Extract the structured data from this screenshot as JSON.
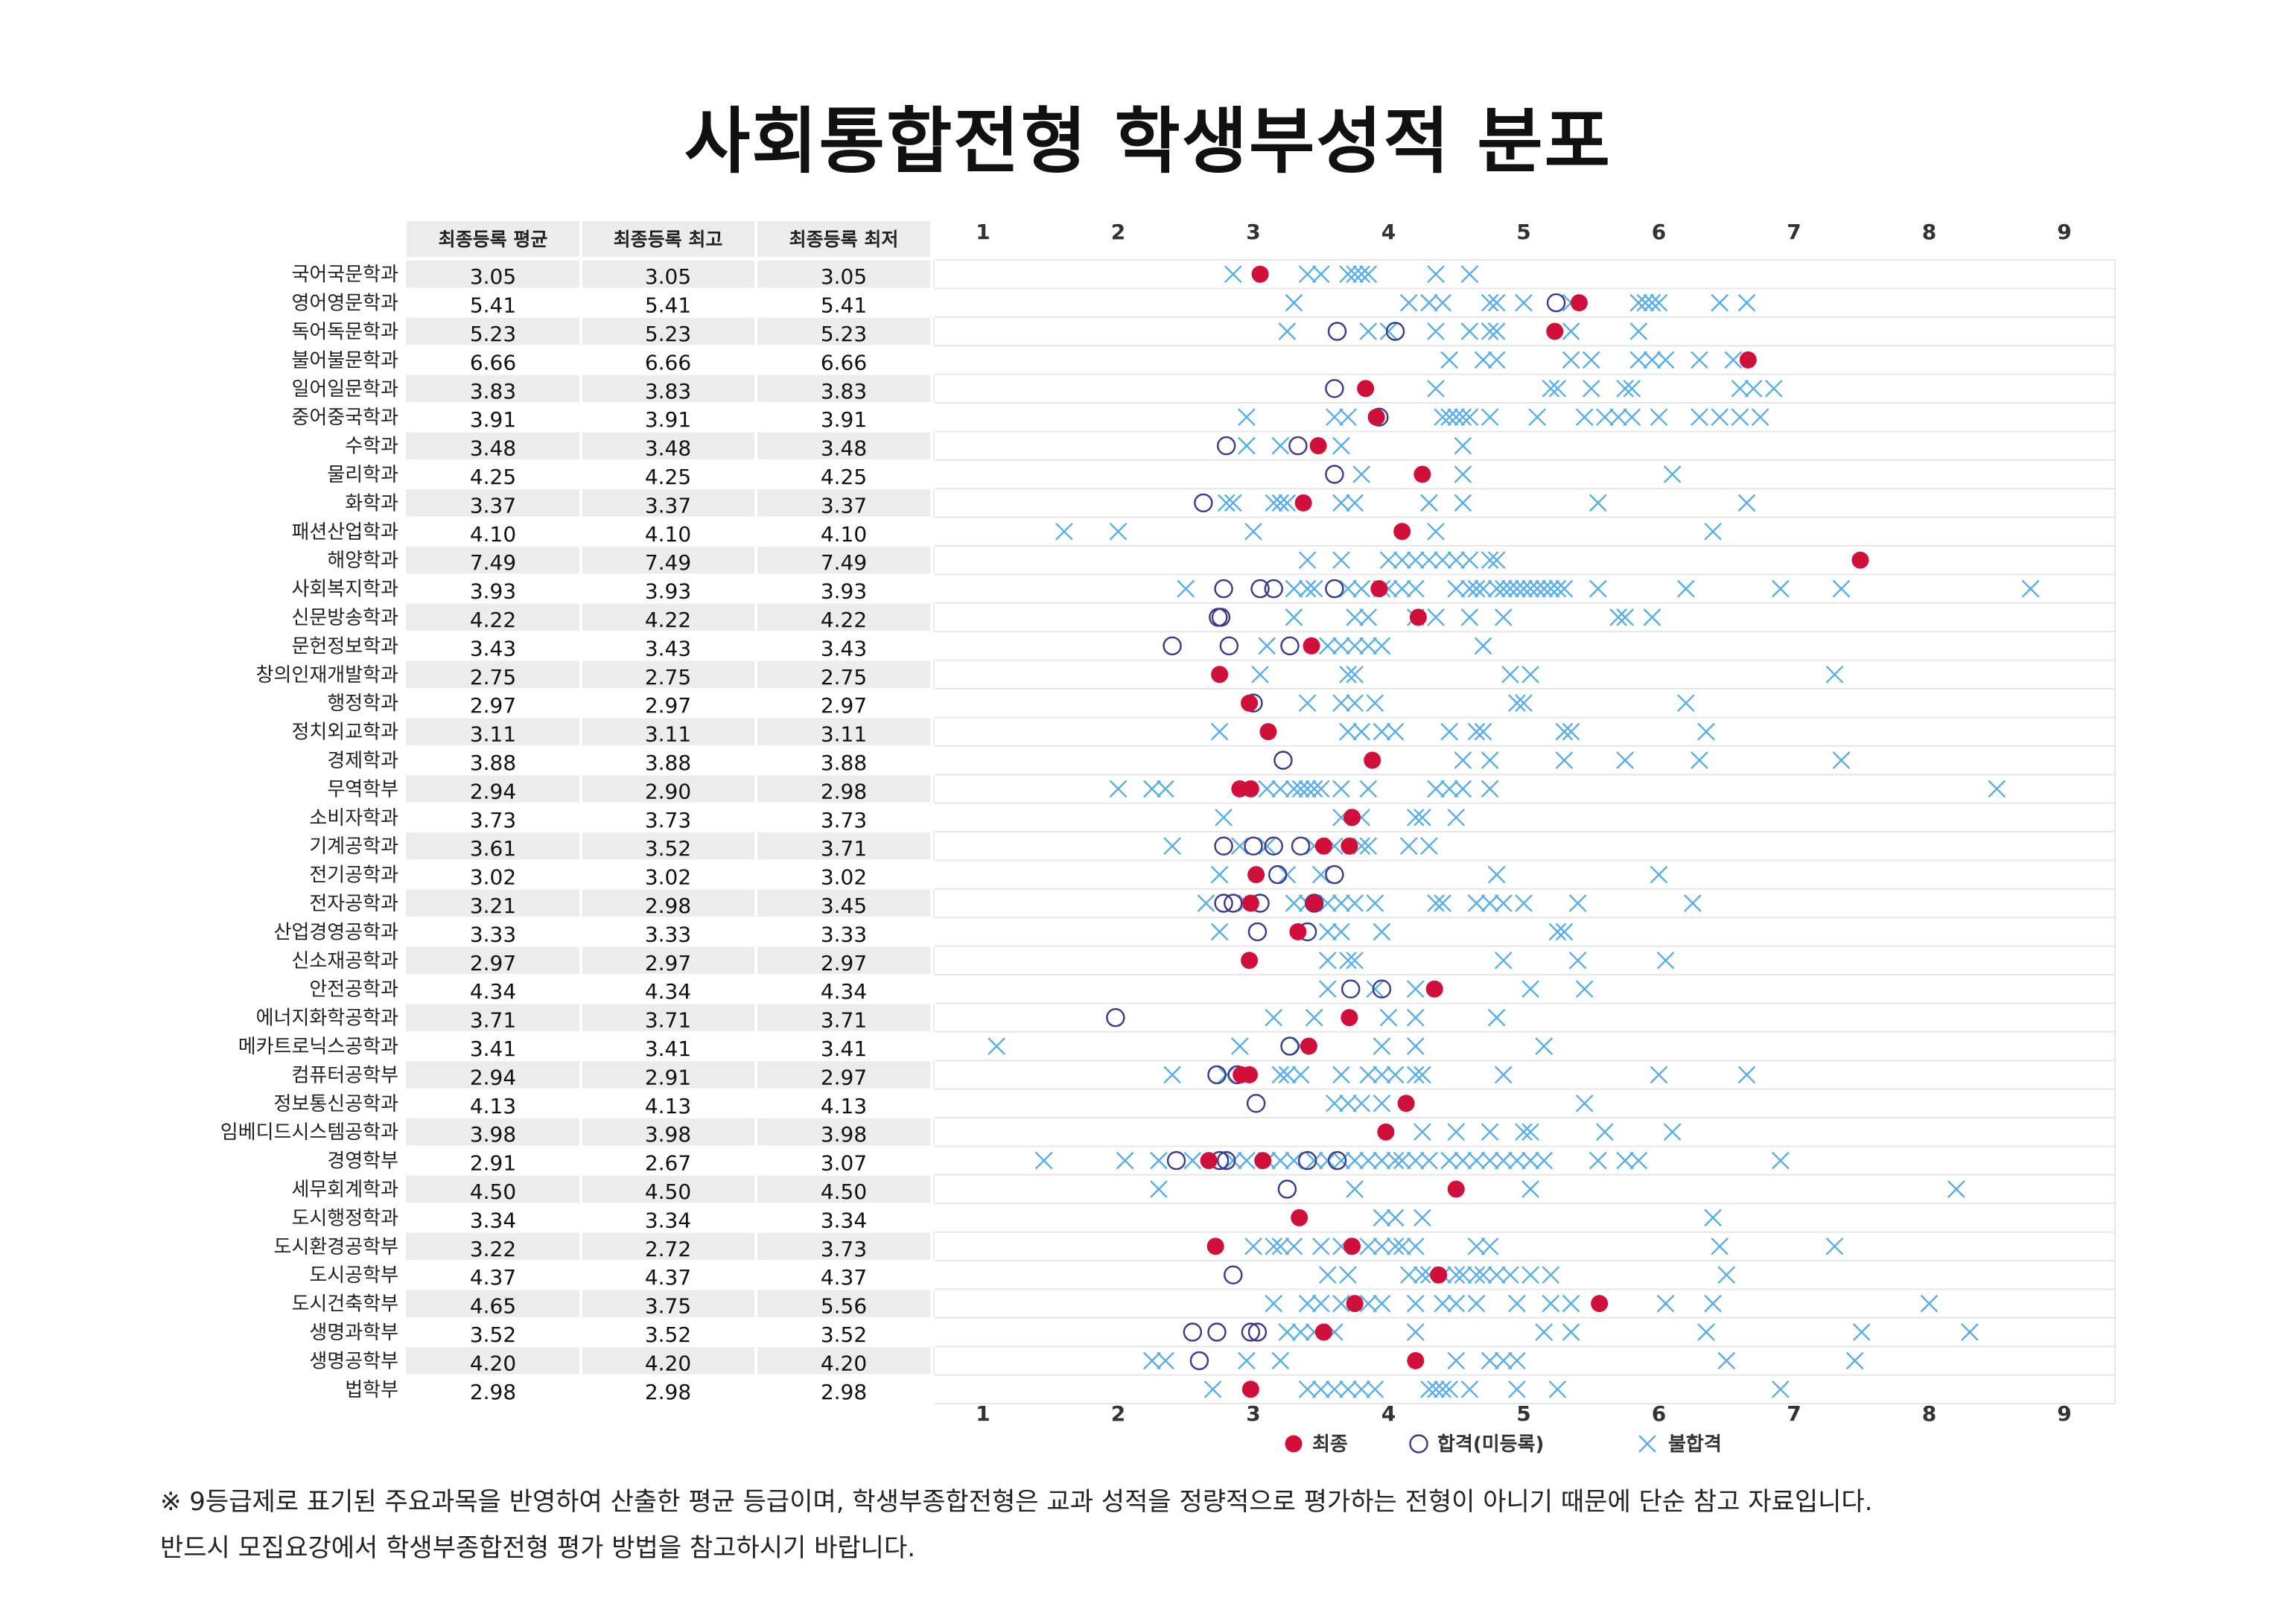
{
  "title": "사회통합전형 학생부성적 분포",
  "chart_data": {
    "type": "scatter",
    "title": "사회통합전형 학생부성적 분포",
    "columns": [
      "최종등록 평균",
      "최종등록 최고",
      "최종등록 최저"
    ],
    "x_ticks": [
      1,
      2,
      3,
      4,
      5,
      6,
      7,
      8,
      9
    ],
    "xlim": [
      1,
      9
    ],
    "legend": {
      "position": "bottom",
      "items": [
        {
          "key": "final",
          "label": "최종",
          "marker": "filled-circle",
          "color": "#d0103a"
        },
        {
          "key": "pass",
          "label": "합격(미등록)",
          "marker": "open-circle",
          "color": "#3b3a8c"
        },
        {
          "key": "fail",
          "label": "불합격",
          "marker": "x",
          "color": "#5aaee6"
        }
      ]
    },
    "rows": [
      {
        "dept": "국어국문학과",
        "avg": "3.05",
        "max": "3.05",
        "min": "3.05",
        "final": [
          3.05
        ],
        "pass": [],
        "fail": [
          2.85,
          3.4,
          3.5,
          3.7,
          3.75,
          3.8,
          3.85,
          4.35,
          4.6
        ]
      },
      {
        "dept": "영어영문학과",
        "avg": "5.41",
        "max": "5.41",
        "min": "5.41",
        "final": [
          5.41
        ],
        "pass": [
          5.24
        ],
        "fail": [
          3.3,
          4.15,
          4.3,
          4.4,
          4.75,
          4.8,
          5.0,
          5.35,
          5.85,
          5.9,
          5.95,
          6.0,
          6.45,
          6.65
        ]
      },
      {
        "dept": "독어독문학과",
        "avg": "5.23",
        "max": "5.23",
        "min": "5.23",
        "final": [
          5.23
        ],
        "pass": [
          3.62,
          4.05
        ],
        "fail": [
          3.25,
          3.85,
          4.0,
          4.35,
          4.6,
          4.75,
          4.8,
          5.35,
          5.85
        ]
      },
      {
        "dept": "불어불문학과",
        "avg": "6.66",
        "max": "6.66",
        "min": "6.66",
        "final": [
          6.66
        ],
        "pass": [],
        "fail": [
          4.45,
          4.7,
          4.8,
          5.35,
          5.5,
          5.85,
          5.95,
          6.05,
          6.3,
          6.55
        ]
      },
      {
        "dept": "일어일문학과",
        "avg": "3.83",
        "max": "3.83",
        "min": "3.83",
        "final": [
          3.83
        ],
        "pass": [
          3.6
        ],
        "fail": [
          4.35,
          5.2,
          5.25,
          5.5,
          5.75,
          5.8,
          6.6,
          6.7,
          6.85
        ]
      },
      {
        "dept": "중어중국학과",
        "avg": "3.91",
        "max": "3.91",
        "min": "3.91",
        "final": [
          3.91
        ],
        "pass": [
          3.93
        ],
        "fail": [
          2.95,
          3.6,
          3.7,
          4.4,
          4.45,
          4.5,
          4.55,
          4.6,
          4.75,
          5.1,
          5.45,
          5.6,
          5.7,
          5.8,
          6.0,
          6.3,
          6.45,
          6.6,
          6.75
        ]
      },
      {
        "dept": "수학과",
        "avg": "3.48",
        "max": "3.48",
        "min": "3.48",
        "final": [
          3.48
        ],
        "pass": [
          2.8,
          3.33
        ],
        "fail": [
          2.95,
          3.2,
          3.65,
          4.55
        ]
      },
      {
        "dept": "물리학과",
        "avg": "4.25",
        "max": "4.25",
        "min": "4.25",
        "final": [
          4.25
        ],
        "pass": [
          3.6
        ],
        "fail": [
          3.8,
          4.55,
          6.1
        ]
      },
      {
        "dept": "화학과",
        "avg": "3.37",
        "max": "3.37",
        "min": "3.37",
        "final": [
          3.37
        ],
        "pass": [
          2.63
        ],
        "fail": [
          2.8,
          2.85,
          3.15,
          3.2,
          3.25,
          3.65,
          3.75,
          4.3,
          4.55,
          5.55,
          6.65
        ]
      },
      {
        "dept": "패션산업학과",
        "avg": "4.10",
        "max": "4.10",
        "min": "4.10",
        "final": [
          4.1
        ],
        "pass": [],
        "fail": [
          1.6,
          2.0,
          3.0,
          4.35,
          6.4
        ]
      },
      {
        "dept": "해양학과",
        "avg": "7.49",
        "max": "7.49",
        "min": "7.49",
        "final": [
          7.49
        ],
        "pass": [],
        "fail": [
          3.4,
          3.65,
          4.0,
          4.1,
          4.2,
          4.3,
          4.4,
          4.5,
          4.6,
          4.75,
          4.8
        ]
      },
      {
        "dept": "사회복지학과",
        "avg": "3.93",
        "max": "3.93",
        "min": "3.93",
        "final": [
          3.93
        ],
        "pass": [
          2.78,
          3.05,
          3.15,
          3.6
        ],
        "fail": [
          2.5,
          3.3,
          3.4,
          3.45,
          3.7,
          3.8,
          3.95,
          4.0,
          4.1,
          4.2,
          4.5,
          4.6,
          4.65,
          4.7,
          4.8,
          4.85,
          4.9,
          4.95,
          5.0,
          5.05,
          5.1,
          5.15,
          5.2,
          5.25,
          5.3,
          5.55,
          6.2,
          6.9,
          7.35,
          8.75
        ]
      },
      {
        "dept": "신문방송학과",
        "avg": "4.22",
        "max": "4.22",
        "min": "4.22",
        "final": [
          4.22
        ],
        "pass": [
          2.74,
          2.76
        ],
        "fail": [
          3.3,
          3.75,
          3.85,
          4.2,
          4.35,
          4.6,
          4.85,
          5.7,
          5.75,
          5.95
        ]
      },
      {
        "dept": "문헌정보학과",
        "avg": "3.43",
        "max": "3.43",
        "min": "3.43",
        "final": [
          3.43
        ],
        "pass": [
          2.4,
          2.82,
          3.27
        ],
        "fail": [
          3.1,
          3.55,
          3.65,
          3.75,
          3.85,
          3.95,
          4.7
        ]
      },
      {
        "dept": "창의인재개발학과",
        "avg": "2.75",
        "max": "2.75",
        "min": "2.75",
        "final": [
          2.75
        ],
        "pass": [],
        "fail": [
          3.05,
          3.7,
          3.75,
          4.9,
          5.05,
          7.3
        ]
      },
      {
        "dept": "행정학과",
        "avg": "2.97",
        "max": "2.97",
        "min": "2.97",
        "final": [
          2.97
        ],
        "pass": [
          3.0
        ],
        "fail": [
          3.4,
          3.65,
          3.75,
          3.9,
          4.95,
          5.0,
          6.2
        ]
      },
      {
        "dept": "정치외교학과",
        "avg": "3.11",
        "max": "3.11",
        "min": "3.11",
        "final": [
          3.11
        ],
        "pass": [],
        "fail": [
          2.75,
          3.7,
          3.8,
          3.95,
          4.05,
          4.45,
          4.65,
          4.7,
          5.3,
          5.35,
          6.35
        ]
      },
      {
        "dept": "경제학과",
        "avg": "3.88",
        "max": "3.88",
        "min": "3.88",
        "final": [
          3.88
        ],
        "pass": [
          3.22
        ],
        "fail": [
          4.55,
          4.75,
          5.3,
          5.75,
          6.3,
          7.35
        ]
      },
      {
        "dept": "무역학부",
        "avg": "2.94",
        "max": "2.90",
        "min": "2.98",
        "final": [
          2.9,
          2.98
        ],
        "pass": [],
        "fail": [
          2.0,
          2.25,
          2.35,
          3.1,
          3.2,
          3.3,
          3.35,
          3.4,
          3.45,
          3.5,
          3.65,
          3.85,
          4.35,
          4.45,
          4.55,
          4.75,
          8.5
        ]
      },
      {
        "dept": "소비자학과",
        "avg": "3.73",
        "max": "3.73",
        "min": "3.73",
        "final": [
          3.73
        ],
        "pass": [],
        "fail": [
          2.78,
          3.65,
          3.8,
          4.2,
          4.25,
          4.5
        ]
      },
      {
        "dept": "기계공학과",
        "avg": "3.61",
        "max": "3.52",
        "min": "3.71",
        "final": [
          3.52,
          3.71
        ],
        "pass": [
          2.78,
          3.0,
          3.15,
          3.35
        ],
        "fail": [
          2.4,
          2.9,
          3.1,
          3.45,
          3.6,
          3.8,
          3.85,
          4.15,
          4.3
        ]
      },
      {
        "dept": "전기공학과",
        "avg": "3.02",
        "max": "3.02",
        "min": "3.02",
        "final": [
          3.02
        ],
        "pass": [
          3.18,
          3.6
        ],
        "fail": [
          2.75,
          3.25,
          3.5,
          4.8,
          6.0
        ]
      },
      {
        "dept": "전자공학과",
        "avg": "3.21",
        "max": "2.98",
        "min": "3.45",
        "final": [
          2.98,
          3.45
        ],
        "pass": [
          2.78,
          2.85,
          3.05,
          3.45
        ],
        "fail": [
          2.65,
          2.95,
          3.3,
          3.4,
          3.55,
          3.65,
          3.75,
          3.9,
          4.35,
          4.4,
          4.65,
          4.75,
          4.85,
          5.0,
          5.4,
          6.25
        ]
      },
      {
        "dept": "산업경영공학과",
        "avg": "3.33",
        "max": "3.33",
        "min": "3.33",
        "final": [
          3.33
        ],
        "pass": [
          3.03,
          3.4
        ],
        "fail": [
          2.75,
          3.55,
          3.65,
          3.95,
          5.25,
          5.3
        ]
      },
      {
        "dept": "신소재공학과",
        "avg": "2.97",
        "max": "2.97",
        "min": "2.97",
        "final": [
          2.97
        ],
        "pass": [],
        "fail": [
          3.55,
          3.7,
          3.75,
          4.85,
          5.4,
          6.05
        ]
      },
      {
        "dept": "안전공학과",
        "avg": "4.34",
        "max": "4.34",
        "min": "4.34",
        "final": [
          4.34
        ],
        "pass": [
          3.72,
          3.95
        ],
        "fail": [
          3.55,
          3.9,
          4.2,
          5.05,
          5.45
        ]
      },
      {
        "dept": "에너지화학공학과",
        "avg": "3.71",
        "max": "3.71",
        "min": "3.71",
        "final": [
          3.71
        ],
        "pass": [
          1.98
        ],
        "fail": [
          3.15,
          3.45,
          4.0,
          4.2,
          4.8
        ]
      },
      {
        "dept": "메카트로닉스공학과",
        "avg": "3.41",
        "max": "3.41",
        "min": "3.41",
        "final": [
          3.41
        ],
        "pass": [
          3.27
        ],
        "fail": [
          1.1,
          2.9,
          3.35,
          3.95,
          4.2,
          5.15
        ]
      },
      {
        "dept": "컴퓨터공학부",
        "avg": "2.94",
        "max": "2.91",
        "min": "2.97",
        "final": [
          2.91,
          2.97
        ],
        "pass": [
          2.73,
          2.88
        ],
        "fail": [
          2.4,
          2.8,
          3.2,
          3.25,
          3.35,
          3.65,
          3.85,
          3.95,
          4.05,
          4.2,
          4.25,
          4.85,
          6.0,
          6.65
        ]
      },
      {
        "dept": "정보통신공학과",
        "avg": "4.13",
        "max": "4.13",
        "min": "4.13",
        "final": [
          4.13
        ],
        "pass": [
          3.02
        ],
        "fail": [
          3.6,
          3.7,
          3.8,
          3.95,
          5.45
        ]
      },
      {
        "dept": "임베디드시스템공학과",
        "avg": "3.98",
        "max": "3.98",
        "min": "3.98",
        "final": [
          3.98
        ],
        "pass": [],
        "fail": [
          4.25,
          4.5,
          4.75,
          5.0,
          5.05,
          5.6,
          6.1
        ]
      },
      {
        "dept": "경영학부",
        "avg": "2.91",
        "max": "2.67",
        "min": "3.07",
        "final": [
          2.67,
          3.07
        ],
        "pass": [
          2.43,
          2.75,
          2.8,
          3.4,
          3.62
        ],
        "fail": [
          1.45,
          2.05,
          2.3,
          2.55,
          2.85,
          2.95,
          3.1,
          3.2,
          3.3,
          3.45,
          3.55,
          3.65,
          3.75,
          3.85,
          3.95,
          4.05,
          4.1,
          4.2,
          4.3,
          4.45,
          4.55,
          4.65,
          4.75,
          4.85,
          4.95,
          5.05,
          5.15,
          5.55,
          5.75,
          5.85,
          6.9
        ]
      },
      {
        "dept": "세무회계학과",
        "avg": "4.50",
        "max": "4.50",
        "min": "4.50",
        "final": [
          4.5
        ],
        "pass": [
          3.25
        ],
        "fail": [
          2.3,
          3.75,
          5.05,
          8.2
        ]
      },
      {
        "dept": "도시행정학과",
        "avg": "3.34",
        "max": "3.34",
        "min": "3.34",
        "final": [
          3.34
        ],
        "pass": [],
        "fail": [
          3.95,
          4.05,
          4.25,
          6.4
        ]
      },
      {
        "dept": "도시환경공학부",
        "avg": "3.22",
        "max": "2.72",
        "min": "3.73",
        "final": [
          2.72,
          3.73
        ],
        "pass": [],
        "fail": [
          3.0,
          3.15,
          3.2,
          3.3,
          3.5,
          3.65,
          3.85,
          3.95,
          4.05,
          4.1,
          4.2,
          4.65,
          4.75,
          6.45,
          7.3
        ]
      },
      {
        "dept": "도시공학부",
        "avg": "4.37",
        "max": "4.37",
        "min": "4.37",
        "final": [
          4.37
        ],
        "pass": [
          2.85
        ],
        "fail": [
          3.55,
          3.7,
          4.15,
          4.25,
          4.3,
          4.4,
          4.5,
          4.55,
          4.65,
          4.7,
          4.8,
          4.9,
          5.05,
          5.2,
          6.5
        ]
      },
      {
        "dept": "도시건축학부",
        "avg": "4.65",
        "max": "3.75",
        "min": "5.56",
        "final": [
          3.75,
          5.56
        ],
        "pass": [],
        "fail": [
          3.15,
          3.4,
          3.5,
          3.65,
          3.85,
          3.95,
          4.2,
          4.4,
          4.5,
          4.65,
          4.95,
          5.2,
          5.35,
          6.05,
          6.4,
          8.0
        ]
      },
      {
        "dept": "생명과학부",
        "avg": "3.52",
        "max": "3.52",
        "min": "3.52",
        "final": [
          3.52
        ],
        "pass": [
          2.55,
          2.73,
          2.98,
          3.03
        ],
        "fail": [
          3.25,
          3.35,
          3.45,
          3.6,
          4.2,
          5.15,
          5.35,
          6.35,
          7.5,
          8.3
        ]
      },
      {
        "dept": "생명공학부",
        "avg": "4.20",
        "max": "4.20",
        "min": "4.20",
        "final": [
          4.2
        ],
        "pass": [
          2.6
        ],
        "fail": [
          2.25,
          2.35,
          2.95,
          3.2,
          4.5,
          4.75,
          4.85,
          4.95,
          6.5,
          7.45
        ]
      },
      {
        "dept": "법학부",
        "avg": "2.98",
        "max": "2.98",
        "min": "2.98",
        "final": [
          2.98
        ],
        "pass": [],
        "fail": [
          2.7,
          3.4,
          3.5,
          3.6,
          3.7,
          3.8,
          3.9,
          4.3,
          4.35,
          4.4,
          4.45,
          4.6,
          4.95,
          5.25,
          6.9
        ]
      }
    ]
  },
  "note": {
    "line1": "※ 9등급제로 표기된 주요과목을 반영하여 산출한 평균 등급이며, 학생부종합전형은 교과 성적을 정량적으로 평가하는 전형이 아니기 때문에 단순 참고 자료입니다.",
    "line2": "반드시 모집요강에서 학생부종합전형 평가 방법을 참고하시기 바랍니다."
  }
}
